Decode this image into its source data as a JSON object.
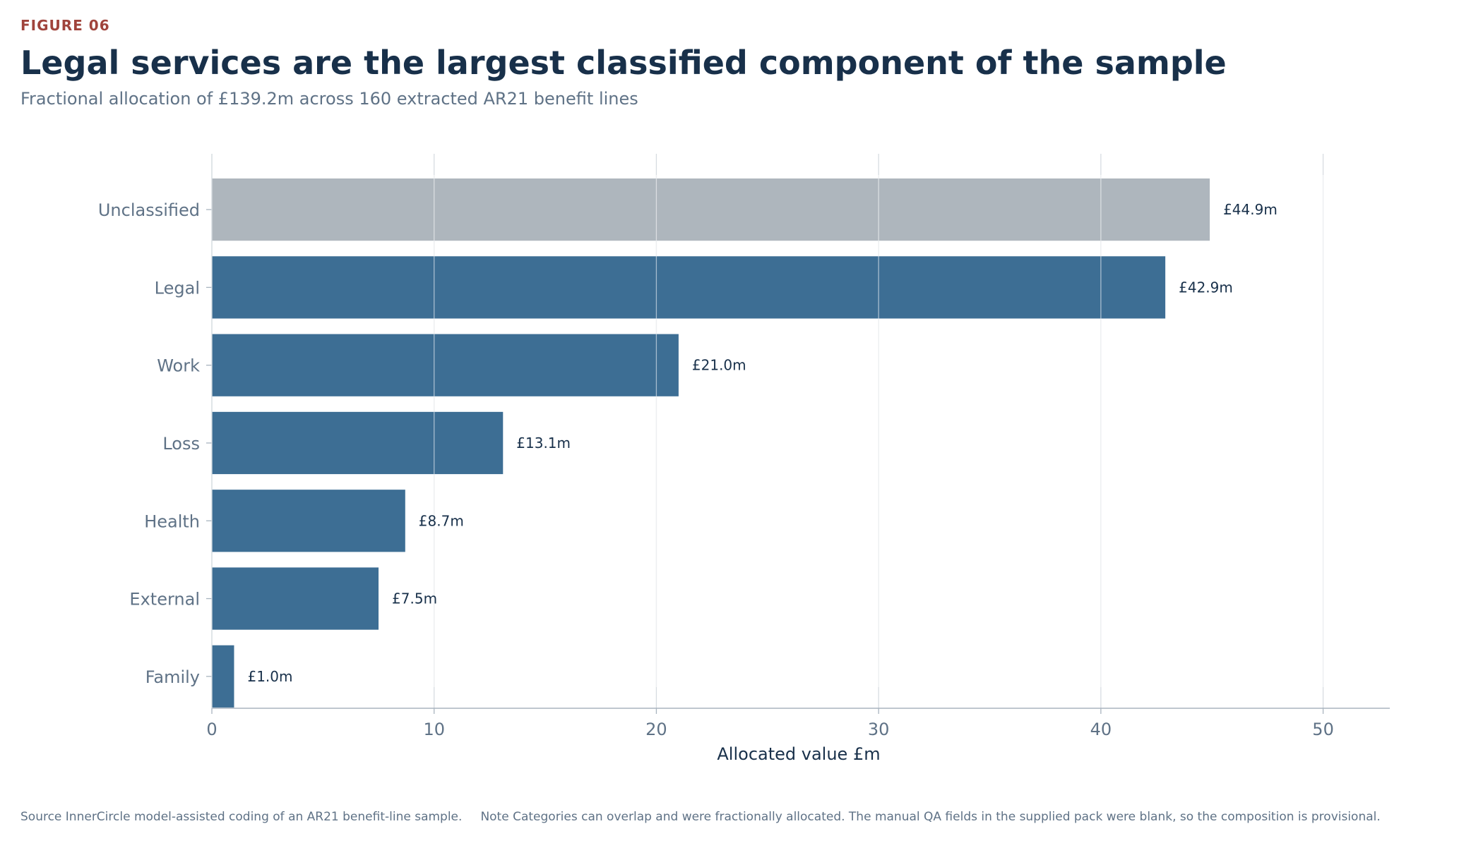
{
  "header": {
    "figure_label": "FIGURE 06",
    "title": "Legal services are the largest classified component of the sample",
    "subtitle": "Fractional allocation of £139.2m across 160 extracted AR21 benefit lines"
  },
  "footer": {
    "source": "Source  InnerCircle model-assisted coding of an AR21 benefit-line sample.",
    "note": "Note  Categories can overlap and were fractionally allocated. The manual QA fields in the supplied pack were blank, so the composition is provisional."
  },
  "colors": {
    "primary_bar": "#3d6e94",
    "unclassified_bar": "#aeb6bd",
    "gridline": "#d7dce1",
    "axis": "#a9b4bf"
  },
  "chart_data": {
    "type": "bar",
    "orientation": "horizontal",
    "categories": [
      "Unclassified",
      "Legal",
      "Work",
      "Loss",
      "Health",
      "External",
      "Family"
    ],
    "values": [
      44.9,
      42.9,
      21.0,
      13.1,
      8.7,
      7.5,
      1.0
    ],
    "value_labels": [
      "£44.9m",
      "£42.9m",
      "£21.0m",
      "£13.1m",
      "£8.7m",
      "£7.5m",
      "£1.0m"
    ],
    "highlight_category": "Unclassified",
    "xlabel": "Allocated value  £m",
    "ylabel": "",
    "xlim": [
      0,
      53
    ],
    "xticks": [
      0,
      10,
      20,
      30,
      40,
      50
    ],
    "grid": "vertical"
  }
}
